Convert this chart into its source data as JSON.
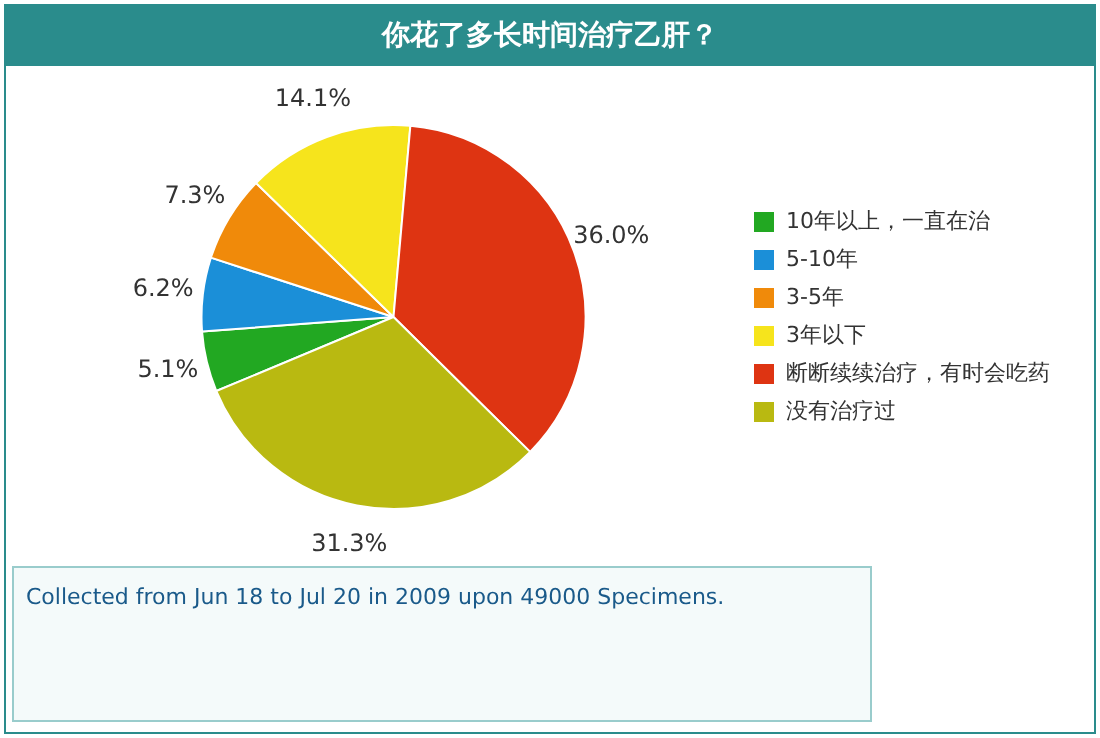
{
  "chart_data": {
    "type": "pie",
    "title": "你花了多长时间治疗乙肝？",
    "categories": [
      "10年以上，一直在治",
      "5-10年",
      "3-5年",
      "3年以下",
      "断断续续治疗，有时会吃药",
      "没有治疗过"
    ],
    "values": [
      5.1,
      6.2,
      7.3,
      14.1,
      36.0,
      31.3
    ],
    "value_labels": [
      "5.1%",
      "6.2%",
      "7.3%",
      "14.1%",
      "36.0%",
      "31.3%"
    ],
    "colors": [
      "#22a822",
      "#1b8fd8",
      "#f08a0a",
      "#f6e41c",
      "#de3412",
      "#b9b911"
    ],
    "legend": "right",
    "annotations": [
      "Collected from Jun 18 to Jul 20 in 2009 upon 49000 Specimens."
    ]
  }
}
